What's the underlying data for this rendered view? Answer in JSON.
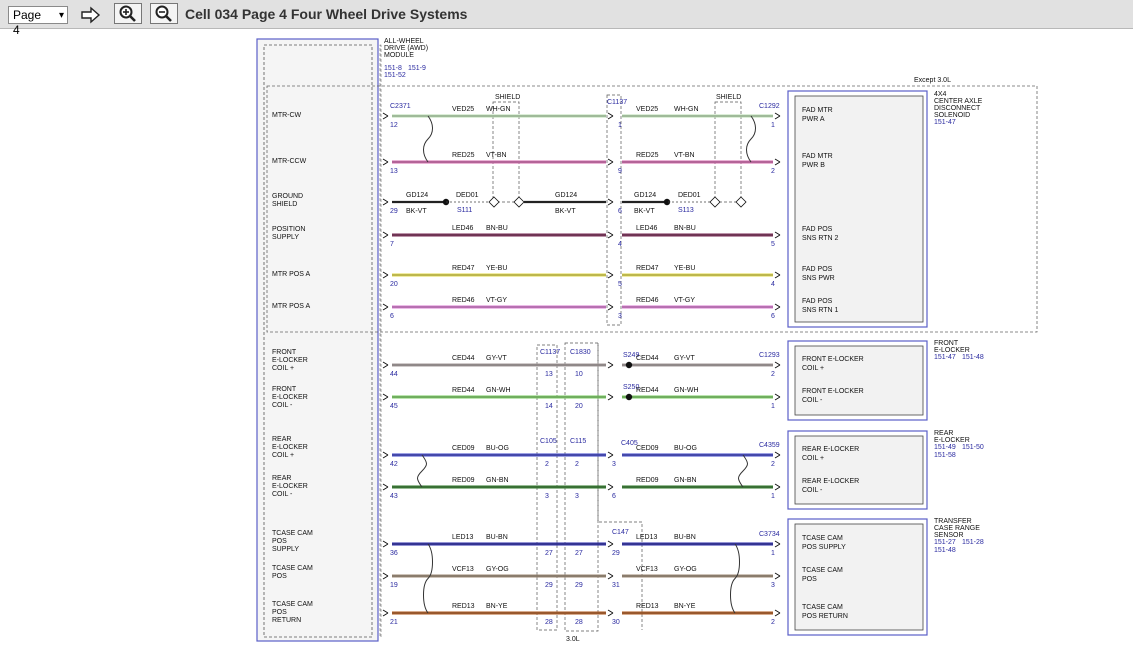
{
  "toolbar": {
    "page_select_value": "Page 4",
    "title": "Cell 034 Page 4 Four Wheel Drive Systems",
    "icons": [
      "go-arrow-icon",
      "zoom-in-icon",
      "zoom-out-icon"
    ]
  },
  "colors": {
    "toolbar_bg": "#e1e1e1",
    "module_outline": "#5a5fc8",
    "connector_text": "#2a2aa0"
  },
  "awd_module": {
    "name_lines": [
      "ALL-WHEEL",
      "DRIVE (AWD)",
      "MODULE"
    ],
    "refs": [
      "151-8",
      "151-9",
      "151-52"
    ]
  },
  "except_note": "Except 3.0L",
  "bottom_note": "3.0L",
  "shield_labels": [
    "SHIELD",
    "SHIELD"
  ],
  "left_pins": [
    {
      "lines": [
        "MTR-CW"
      ]
    },
    {
      "lines": [
        "MTR-CCW"
      ]
    },
    {
      "lines": [
        "GROUND",
        "SHIELD"
      ]
    },
    {
      "lines": [
        "POSITION",
        "SUPPLY"
      ]
    },
    {
      "lines": [
        "MTR POS A"
      ]
    },
    {
      "lines": [
        "MTR POS A"
      ]
    },
    {
      "lines": [
        "FRONT",
        "E-LOCKER",
        "COIL +"
      ]
    },
    {
      "lines": [
        "FRONT",
        "E-LOCKER",
        "COIL -"
      ]
    },
    {
      "lines": [
        "REAR",
        "E-LOCKER",
        "COIL +"
      ]
    },
    {
      "lines": [
        "REAR",
        "E-LOCKER",
        "COIL -"
      ]
    },
    {
      "lines": [
        "TCASE CAM",
        "POS",
        "SUPPLY"
      ]
    },
    {
      "lines": [
        "TCASE CAM",
        "POS"
      ]
    },
    {
      "lines": [
        "TCASE CAM",
        "POS",
        "RETURN"
      ]
    }
  ],
  "components": [
    {
      "id": "solenoid",
      "name_lines": [
        "4X4",
        "CENTER AXLE",
        "DISCONNECT",
        "SOLENOID"
      ],
      "refs": [
        "151-47"
      ]
    },
    {
      "id": "front",
      "name_lines": [
        "FRONT",
        "E-LOCKER"
      ],
      "refs": [
        "151-47",
        "151-48"
      ]
    },
    {
      "id": "rear",
      "name_lines": [
        "REAR",
        "E-LOCKER"
      ],
      "refs": [
        "151-49",
        "151-50",
        "151-58"
      ]
    },
    {
      "id": "sensor",
      "name_lines": [
        "TRANSFER",
        "CASE RANGE",
        "SENSOR"
      ],
      "refs": [
        "151-27",
        "151-28",
        "151-48"
      ]
    }
  ],
  "connectors": [
    "C2371",
    "C1137",
    "C1292",
    "C1137",
    "C1830",
    "C1293",
    "C105",
    "C115",
    "C405",
    "C4359",
    "C147",
    "C3734"
  ],
  "splices": [
    "S111",
    "S113",
    "S249",
    "S250"
  ],
  "wires": [
    {
      "row": 0,
      "pin": "12",
      "seg1": {
        "circuit": "VED25",
        "color": "WH-GN"
      },
      "mid_pin": "1",
      "seg2": {
        "circuit": "VED25",
        "color": "WH-GN"
      },
      "end_pin": "1",
      "right_lines": [
        "FAD MTR",
        "PWR A"
      ],
      "stroke": "#b8dcb0"
    },
    {
      "row": 1,
      "pin": "13",
      "seg1": {
        "circuit": "RED25",
        "color": "VT-BN"
      },
      "mid_pin": "9",
      "seg2": {
        "circuit": "RED25",
        "color": "VT-BN"
      },
      "end_pin": "2",
      "right_lines": [
        "FAD MTR",
        "PWR B"
      ],
      "stroke": "#d46aae"
    },
    {
      "row": 2,
      "pin": "29",
      "seg1": {
        "circuit": "GD124",
        "color": "BK-VT"
      },
      "seg1b": "DED01",
      "seg2": {
        "circuit": "GD124",
        "color": "BK-VT"
      },
      "mid_pin": "6",
      "seg3": {
        "circuit": "GD124",
        "color": "BK-VT"
      },
      "seg3b": "DED01",
      "stroke": "#222"
    },
    {
      "row": 3,
      "pin": "7",
      "seg1": {
        "circuit": "LED46",
        "color": "BN-BU"
      },
      "mid_pin": "4",
      "seg2": {
        "circuit": "LED46",
        "color": "BN-BU"
      },
      "end_pin": "5",
      "right_lines": [
        "FAD POS",
        "SNS RTN 2"
      ],
      "stroke": "#7a2a55"
    },
    {
      "row": 4,
      "pin": "20",
      "seg1": {
        "circuit": "RED47",
        "color": "YE-BU"
      },
      "mid_pin": "5",
      "seg2": {
        "circuit": "RED47",
        "color": "YE-BU"
      },
      "end_pin": "4",
      "right_lines": [
        "FAD POS",
        "SNS PWR"
      ],
      "stroke": "#e0d84a"
    },
    {
      "row": 5,
      "pin": "6",
      "seg1": {
        "circuit": "RED46",
        "color": "VT-GY"
      },
      "mid_pin": "3",
      "seg2": {
        "circuit": "RED46",
        "color": "VT-GY"
      },
      "end_pin": "6",
      "right_lines": [
        "FAD POS",
        "SNS RTN 1"
      ],
      "stroke": "#d87ad0"
    },
    {
      "row": 6,
      "pin": "44",
      "seg1": {
        "circuit": "CED44",
        "color": "GY-VT"
      },
      "mid_pin": "13",
      "mid_pin2": "10",
      "seg2": {
        "circuit": "CED44",
        "color": "GY-VT"
      },
      "end_pin": "2",
      "right_lines": [
        "FRONT E-LOCKER",
        "COIL +"
      ],
      "stroke": "#a39a9a"
    },
    {
      "row": 7,
      "pin": "45",
      "seg1": {
        "circuit": "RED44",
        "color": "GN-WH"
      },
      "mid_pin": "14",
      "mid_pin2": "20",
      "seg2": {
        "circuit": "RED44",
        "color": "GN-WH"
      },
      "end_pin": "1",
      "right_lines": [
        "FRONT E-LOCKER",
        "COIL -"
      ],
      "stroke": "#7acc62"
    },
    {
      "row": 8,
      "pin": "42",
      "seg1": {
        "circuit": "CED09",
        "color": "BU-OG"
      },
      "mid_pin": "2",
      "mid_pin2": "2",
      "mid_pin3": "3",
      "seg2": {
        "circuit": "CED09",
        "color": "BU-OG"
      },
      "end_pin": "2",
      "right_lines": [
        "REAR E-LOCKER",
        "COIL +"
      ],
      "stroke": "#3e44c8"
    },
    {
      "row": 9,
      "pin": "43",
      "seg1": {
        "circuit": "RED09",
        "color": "GN-BN"
      },
      "mid_pin": "3",
      "mid_pin2": "3",
      "mid_pin3": "6",
      "seg2": {
        "circuit": "RED09",
        "color": "GN-BN"
      },
      "end_pin": "1",
      "right_lines": [
        "REAR E-LOCKER",
        "COIL -"
      ],
      "stroke": "#2f7a2a"
    },
    {
      "row": 10,
      "pin": "36",
      "seg1": {
        "circuit": "LED13",
        "color": "BU-BN"
      },
      "mid_pin": "27",
      "mid_pin2": "27",
      "mid_pin3": "29",
      "seg2": {
        "circuit": "LED13",
        "color": "BU-BN"
      },
      "end_pin": "1",
      "right_lines": [
        "TCASE CAM",
        "POS SUPPLY"
      ],
      "stroke": "#2a2aa8"
    },
    {
      "row": 11,
      "pin": "19",
      "seg1": {
        "circuit": "VCF13",
        "color": "GY-OG"
      },
      "mid_pin": "29",
      "mid_pin2": "29",
      "mid_pin3": "31",
      "seg2": {
        "circuit": "VCF13",
        "color": "GY-OG"
      },
      "end_pin": "3",
      "right_lines": [
        "TCASE CAM",
        "POS"
      ],
      "stroke": "#9c8a74"
    },
    {
      "row": 12,
      "pin": "21",
      "seg1": {
        "circuit": "RED13",
        "color": "BN-YE"
      },
      "mid_pin": "28",
      "mid_pin2": "28",
      "mid_pin3": "30",
      "seg2": {
        "circuit": "RED13",
        "color": "BN-YE"
      },
      "end_pin": "2",
      "right_lines": [
        "TCASE CAM",
        "POS RETURN"
      ],
      "stroke": "#b05a1e"
    }
  ]
}
